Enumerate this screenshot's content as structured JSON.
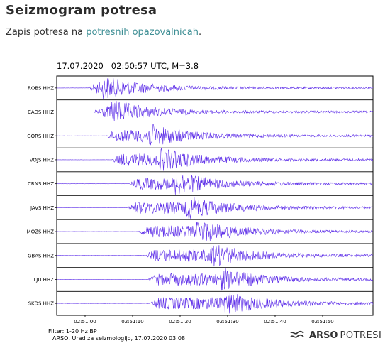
{
  "page": {
    "title": "Seizmogram potresa",
    "intro_text": "Zapis potresa na ",
    "intro_link": "potresnih opazovalnicah",
    "intro_end": "."
  },
  "seismogram": {
    "header": "17.07.2020   02:50:57 UTC, M=3.8",
    "filter_note": "Filter: 1-20 Hz BP",
    "source_note": "ARSO, Urad za seizmologijo, 17.07.2020  03:08",
    "trace_color": "#5b2be8",
    "stations": [
      "ROBS HHZ",
      "CADS HHZ",
      "GORS HHZ",
      "VOJS HHZ",
      "CRNS HHZ",
      "JAVS HHZ",
      "MOZS HHZ",
      "GBAS HHZ",
      "LJU HHZ",
      "SKDS HHZ"
    ],
    "time_ticks": [
      "02:51:00",
      "02:51:10",
      "02:51:20",
      "02:51:30",
      "02:51:40",
      "02:51:50"
    ]
  },
  "logo": {
    "bold": "ARSO",
    "text": "POTRESI",
    "icon": "wave-logo-icon",
    "color": "#333333"
  }
}
